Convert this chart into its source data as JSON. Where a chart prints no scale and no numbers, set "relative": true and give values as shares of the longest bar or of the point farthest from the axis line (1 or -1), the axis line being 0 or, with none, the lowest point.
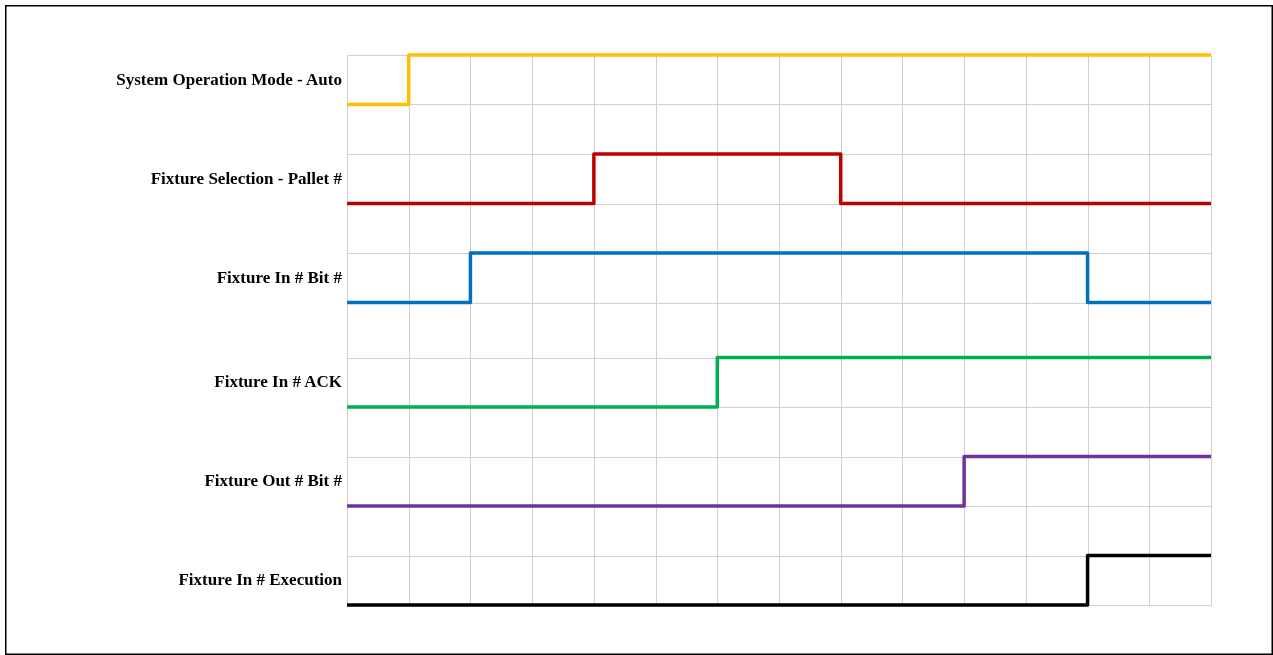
{
  "chart_data": {
    "type": "step",
    "relative": true,
    "grid": true,
    "categories": [
      null,
      null,
      null,
      null,
      null,
      null,
      null,
      null,
      null,
      null,
      null,
      null,
      null,
      null,
      null
    ],
    "series": [
      {
        "name": "System Operation Mode - Auto",
        "color": "#ffc000",
        "values": [
          0.91,
          1,
          1,
          1,
          1,
          1,
          1,
          1,
          1,
          1,
          1,
          1,
          1,
          1,
          1
        ]
      },
      {
        "name": "Fixture Selection - Pallet #",
        "color": "#c00000",
        "values": [
          0.73,
          0.73,
          0.73,
          0.73,
          0.82,
          0.82,
          0.82,
          0.82,
          0.73,
          0.73,
          0.73,
          0.73,
          0.73,
          0.73,
          0.73
        ]
      },
      {
        "name": "Fixture In # Bit #",
        "color": "#0070c0",
        "values": [
          0.55,
          0.55,
          0.64,
          0.64,
          0.64,
          0.64,
          0.64,
          0.64,
          0.64,
          0.64,
          0.64,
          0.64,
          0.55,
          0.55,
          0.55
        ]
      },
      {
        "name": "Fixture In # ACK",
        "color": "#00b050",
        "values": [
          0.36,
          0.36,
          0.36,
          0.36,
          0.36,
          0.36,
          0.45,
          0.45,
          0.45,
          0.45,
          0.45,
          0.45,
          0.45,
          0.45,
          0.45
        ]
      },
      {
        "name": "Fixture Out # Bit #",
        "color": "#7030a0",
        "values": [
          0.18,
          0.18,
          0.18,
          0.18,
          0.18,
          0.18,
          0.18,
          0.18,
          0.18,
          0.18,
          0.27,
          0.27,
          0.27,
          0.27,
          0.27
        ]
      },
      {
        "name": "Fixture In # Execution",
        "color": "#000000",
        "values": [
          0,
          0,
          0,
          0,
          0,
          0,
          0,
          0,
          0,
          0,
          0,
          0,
          0.09,
          0.09,
          0.09
        ]
      }
    ]
  }
}
